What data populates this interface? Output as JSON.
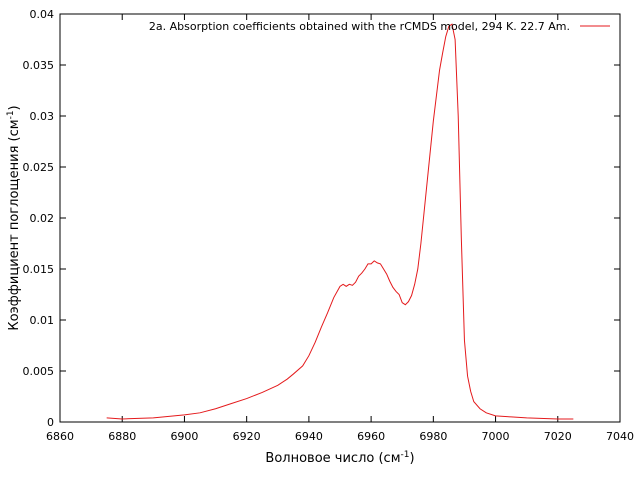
{
  "chart_data": {
    "type": "line",
    "xlabel": [
      "Волновое число (см",
      "-1",
      ")"
    ],
    "ylabel": [
      "Коэффициент поглощения (см",
      "-1",
      ")"
    ],
    "xlim": [
      6860,
      7040
    ],
    "xticks": [
      6860,
      6880,
      6900,
      6920,
      6940,
      6960,
      6980,
      7000,
      7020,
      7040
    ],
    "ylim": [
      0,
      0.04
    ],
    "yticks": [
      0,
      0.005,
      0.01,
      0.015,
      0.02,
      0.025,
      0.03,
      0.035,
      0.04
    ],
    "legend_position": "top-right",
    "x": [
      6875,
      6880,
      6890,
      6900,
      6905,
      6910,
      6915,
      6920,
      6925,
      6930,
      6933,
      6935,
      6938,
      6940,
      6942,
      6944,
      6946,
      6948,
      6950,
      6951,
      6952,
      6953,
      6954,
      6955,
      6956,
      6957,
      6958,
      6959,
      6960,
      6961,
      6962,
      6963,
      6964,
      6965,
      6966,
      6967,
      6968,
      6969,
      6970,
      6971,
      6972,
      6973,
      6974,
      6975,
      6976,
      6977,
      6978,
      6979,
      6980,
      6981,
      6982,
      6983,
      6984,
      6985,
      6986,
      6987,
      6988,
      6989,
      6990,
      6991,
      6992,
      6993,
      6995,
      6997,
      7000,
      7005,
      7010,
      7020,
      7025
    ],
    "series": [
      {
        "name": "2a. Absorption coefficients obtained with the rCMDS model, 294 K. 22.7 Am.",
        "color": "#e41a1c",
        "values": [
          0.0004,
          0.0003,
          0.0004,
          0.0007,
          0.0009,
          0.0013,
          0.0018,
          0.0023,
          0.0029,
          0.0036,
          0.0042,
          0.0047,
          0.0055,
          0.0065,
          0.0078,
          0.0093,
          0.0107,
          0.0122,
          0.0133,
          0.0135,
          0.0133,
          0.0135,
          0.0134,
          0.0137,
          0.0143,
          0.0146,
          0.015,
          0.0155,
          0.0155,
          0.0158,
          0.0156,
          0.0155,
          0.015,
          0.0145,
          0.0138,
          0.0132,
          0.0128,
          0.0125,
          0.0117,
          0.0115,
          0.0118,
          0.0124,
          0.0135,
          0.015,
          0.0175,
          0.0205,
          0.0235,
          0.0265,
          0.0295,
          0.032,
          0.0345,
          0.0362,
          0.0378,
          0.0388,
          0.039,
          0.0375,
          0.03,
          0.018,
          0.008,
          0.0045,
          0.003,
          0.002,
          0.0013,
          0.0009,
          0.0006,
          0.0005,
          0.0004,
          0.0003,
          0.0003
        ]
      }
    ]
  }
}
